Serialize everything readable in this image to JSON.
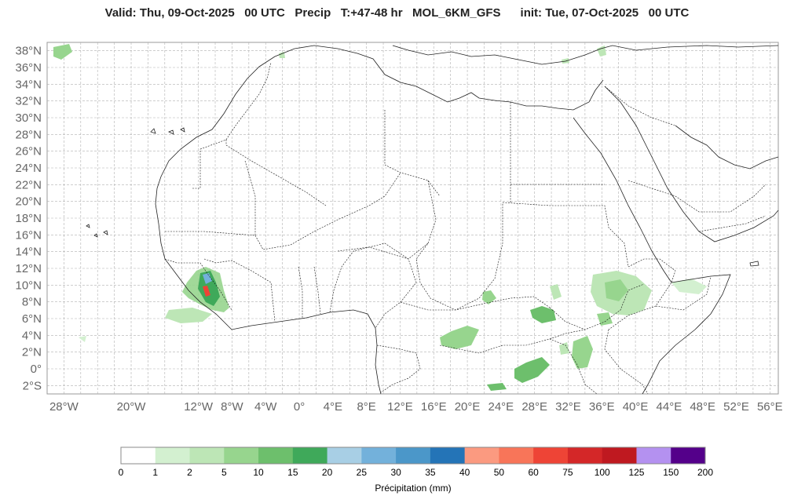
{
  "title": "Valid: Thu, 09-Oct-2025   00 UTC   Precip   T:+47-48 hr   MOL_6KM_GFS      init: Tue, 07-Oct-2025   00 UTC",
  "map": {
    "lat_labels": [
      "38°N",
      "36°N",
      "34°N",
      "32°N",
      "30°N",
      "28°N",
      "26°N",
      "24°N",
      "22°N",
      "20°N",
      "18°N",
      "16°N",
      "14°N",
      "12°N",
      "10°N",
      "8°N",
      "6°N",
      "4°N",
      "2°N",
      "0°",
      "2°S"
    ],
    "lon_labels": [
      "28°W",
      "20°W",
      "12°W",
      "8°W",
      "4°W",
      "0°",
      "4°E",
      "8°E",
      "12°E",
      "16°E",
      "20°E",
      "24°E",
      "28°E",
      "32°E",
      "36°E",
      "40°E",
      "44°E",
      "48°E",
      "52°E",
      "56°E"
    ],
    "lon_range": [
      -30,
      57
    ],
    "lat_range": [
      -3,
      39
    ]
  },
  "colorbar": {
    "title": "Précipitation (mm)",
    "ticks": [
      "0",
      "1",
      "2",
      "5",
      "10",
      "15",
      "20",
      "25",
      "30",
      "35",
      "40",
      "50",
      "60",
      "75",
      "100",
      "125",
      "150",
      "200"
    ],
    "colors": [
      "#ffffff",
      "#d3f0d0",
      "#bde6b6",
      "#97d58e",
      "#6dbf6c",
      "#3fa95a",
      "#a8cfe5",
      "#73b1db",
      "#4b97c9",
      "#2474b7",
      "#fb9a80",
      "#f87559",
      "#ee4436",
      "#d42728",
      "#bf1920",
      "#b491f0",
      "#54008a"
    ]
  },
  "colors": {
    "coast": "#222222",
    "border": "#111111",
    "grid": "#b0b0b0"
  }
}
